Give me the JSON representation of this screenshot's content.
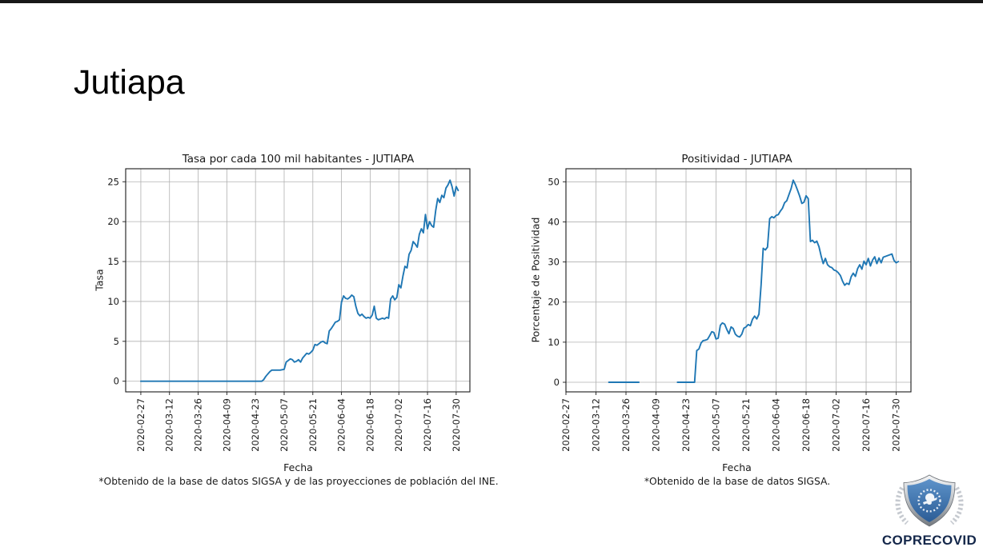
{
  "slide": {
    "title": "Jutiapa"
  },
  "top_bar": {
    "color": "#181818"
  },
  "logo": {
    "text": "COPRECOVID",
    "text_color": "#14274a",
    "shield_blue_top": "#5d92c9",
    "shield_blue_bottom": "#2c5d96",
    "shield_silver": "#c3c7cb",
    "emblem_color": "#eef3f8"
  },
  "chart_data": [
    {
      "type": "line",
      "title": "Tasa por cada 100 mil habitantes - JUTIAPA",
      "xlabel": "Fecha",
      "ylabel": "Tasa",
      "footnote": "*Obtenido de la base de datos SIGSA y de las proyecciones de población del INE.",
      "line_color": "#1f77b4",
      "grid": true,
      "legend": "none",
      "x_ticks": [
        "2020-02-27",
        "2020-03-12",
        "2020-03-26",
        "2020-04-09",
        "2020-04-23",
        "2020-05-07",
        "2020-05-21",
        "2020-06-04",
        "2020-06-18",
        "2020-07-02",
        "2020-07-16",
        "2020-07-30"
      ],
      "y_ticks": [
        0,
        5,
        10,
        15,
        20,
        25
      ],
      "xlim_days": [
        -7.4,
        160.7
      ],
      "ylim": [
        -1.33,
        26.63
      ],
      "series": [
        {
          "name": "Tasa",
          "segments": [
            [
              [
                "2020-02-27",
                0
              ],
              [
                "2020-03-05",
                0
              ],
              [
                "2020-03-12",
                0
              ],
              [
                "2020-03-19",
                0
              ],
              [
                "2020-03-26",
                0
              ],
              [
                "2020-04-02",
                0
              ],
              [
                "2020-04-09",
                0
              ],
              [
                "2020-04-16",
                0
              ],
              [
                "2020-04-23",
                0
              ],
              [
                "2020-04-26",
                0
              ],
              [
                "2020-04-27",
                0.2
              ],
              [
                "2020-04-28",
                0.6
              ],
              [
                "2020-04-29",
                0.9
              ],
              [
                "2020-04-30",
                1.2
              ],
              [
                "2020-05-01",
                1.4
              ],
              [
                "2020-05-03",
                1.4
              ],
              [
                "2020-05-05",
                1.4
              ],
              [
                "2020-05-07",
                1.5
              ],
              [
                "2020-05-08",
                2.4
              ],
              [
                "2020-05-09",
                2.6
              ],
              [
                "2020-05-10",
                2.8
              ],
              [
                "2020-05-11",
                2.7
              ],
              [
                "2020-05-12",
                2.4
              ],
              [
                "2020-05-13",
                2.5
              ],
              [
                "2020-05-14",
                2.7
              ],
              [
                "2020-05-15",
                2.4
              ],
              [
                "2020-05-16",
                2.9
              ],
              [
                "2020-05-17",
                3.2
              ],
              [
                "2020-05-18",
                3.5
              ],
              [
                "2020-05-19",
                3.4
              ],
              [
                "2020-05-20",
                3.6
              ],
              [
                "2020-05-21",
                3.9
              ],
              [
                "2020-05-22",
                4.6
              ],
              [
                "2020-05-23",
                4.5
              ],
              [
                "2020-05-24",
                4.7
              ],
              [
                "2020-05-25",
                4.9
              ],
              [
                "2020-05-26",
                5.0
              ],
              [
                "2020-05-27",
                4.8
              ],
              [
                "2020-05-28",
                4.7
              ],
              [
                "2020-05-29",
                6.3
              ],
              [
                "2020-05-30",
                6.6
              ],
              [
                "2020-05-31",
                7.0
              ],
              [
                "2020-06-01",
                7.4
              ],
              [
                "2020-06-02",
                7.5
              ],
              [
                "2020-06-03",
                7.7
              ],
              [
                "2020-06-04",
                9.9
              ],
              [
                "2020-06-05",
                10.7
              ],
              [
                "2020-06-06",
                10.4
              ],
              [
                "2020-06-07",
                10.3
              ],
              [
                "2020-06-08",
                10.5
              ],
              [
                "2020-06-09",
                10.8
              ],
              [
                "2020-06-10",
                10.6
              ],
              [
                "2020-06-11",
                9.4
              ],
              [
                "2020-06-12",
                8.5
              ],
              [
                "2020-06-13",
                8.2
              ],
              [
                "2020-06-14",
                8.4
              ],
              [
                "2020-06-15",
                8.1
              ],
              [
                "2020-06-16",
                7.9
              ],
              [
                "2020-06-17",
                8.0
              ],
              [
                "2020-06-18",
                7.9
              ],
              [
                "2020-06-19",
                8.3
              ],
              [
                "2020-06-20",
                9.4
              ],
              [
                "2020-06-21",
                7.9
              ],
              [
                "2020-06-22",
                7.7
              ],
              [
                "2020-06-23",
                7.8
              ],
              [
                "2020-06-24",
                7.9
              ],
              [
                "2020-06-25",
                7.8
              ],
              [
                "2020-06-26",
                8.0
              ],
              [
                "2020-06-27",
                7.9
              ],
              [
                "2020-06-28",
                10.3
              ],
              [
                "2020-06-29",
                10.7
              ],
              [
                "2020-06-30",
                10.2
              ],
              [
                "2020-07-01",
                10.5
              ],
              [
                "2020-07-02",
                12.1
              ],
              [
                "2020-07-03",
                11.7
              ],
              [
                "2020-07-04",
                13.2
              ],
              [
                "2020-07-05",
                14.4
              ],
              [
                "2020-07-06",
                14.2
              ],
              [
                "2020-07-07",
                15.9
              ],
              [
                "2020-07-08",
                16.4
              ],
              [
                "2020-07-09",
                17.5
              ],
              [
                "2020-07-10",
                17.2
              ],
              [
                "2020-07-11",
                16.8
              ],
              [
                "2020-07-12",
                18.4
              ],
              [
                "2020-07-13",
                19.1
              ],
              [
                "2020-07-14",
                18.6
              ],
              [
                "2020-07-15",
                20.9
              ],
              [
                "2020-07-16",
                19.1
              ],
              [
                "2020-07-17",
                20.0
              ],
              [
                "2020-07-18",
                19.5
              ],
              [
                "2020-07-19",
                19.3
              ],
              [
                "2020-07-20",
                21.4
              ],
              [
                "2020-07-21",
                22.9
              ],
              [
                "2020-07-22",
                22.4
              ],
              [
                "2020-07-23",
                23.3
              ],
              [
                "2020-07-24",
                23.0
              ],
              [
                "2020-07-25",
                24.2
              ],
              [
                "2020-07-26",
                24.6
              ],
              [
                "2020-07-27",
                25.2
              ],
              [
                "2020-07-28",
                24.4
              ],
              [
                "2020-07-29",
                23.2
              ],
              [
                "2020-07-30",
                24.4
              ],
              [
                "2020-07-31",
                23.9
              ]
            ]
          ]
        }
      ]
    },
    {
      "type": "line",
      "title": "Positividad - JUTIAPA",
      "xlabel": "Fecha",
      "ylabel": "Porcentaje de Positividad",
      "footnote": "*Obtenido de la base de datos SIGSA.",
      "line_color": "#1f77b4",
      "grid": true,
      "legend": "none",
      "x_ticks": [
        "2020-02-27",
        "2020-03-12",
        "2020-03-26",
        "2020-04-09",
        "2020-04-23",
        "2020-05-07",
        "2020-05-21",
        "2020-06-04",
        "2020-06-18",
        "2020-07-02",
        "2020-07-16",
        "2020-07-30"
      ],
      "y_ticks": [
        0,
        10,
        20,
        30,
        40,
        50
      ],
      "xlim_days": [
        0,
        160.9
      ],
      "ylim": [
        -2.39,
        53.25
      ],
      "series": [
        {
          "name": "Porcentaje de Positividad",
          "segments": [
            [
              [
                "2020-03-18",
                0
              ],
              [
                "2020-03-22",
                0
              ],
              [
                "2020-03-26",
                0
              ],
              [
                "2020-03-30",
                0
              ],
              [
                "2020-04-01",
                0
              ]
            ],
            [
              [
                "2020-04-19",
                0
              ],
              [
                "2020-04-22",
                0
              ],
              [
                "2020-04-25",
                0
              ],
              [
                "2020-04-27",
                0
              ],
              [
                "2020-04-28",
                7.9
              ],
              [
                "2020-04-29",
                8.3
              ],
              [
                "2020-04-30",
                9.8
              ],
              [
                "2020-05-01",
                10.4
              ],
              [
                "2020-05-02",
                10.5
              ],
              [
                "2020-05-03",
                10.7
              ],
              [
                "2020-05-04",
                11.6
              ],
              [
                "2020-05-05",
                12.6
              ],
              [
                "2020-05-06",
                12.4
              ],
              [
                "2020-05-07",
                10.8
              ],
              [
                "2020-05-08",
                11.0
              ],
              [
                "2020-05-09",
                14.2
              ],
              [
                "2020-05-10",
                14.8
              ],
              [
                "2020-05-11",
                14.5
              ],
              [
                "2020-05-12",
                13.2
              ],
              [
                "2020-05-13",
                12.1
              ],
              [
                "2020-05-14",
                13.8
              ],
              [
                "2020-05-15",
                13.4
              ],
              [
                "2020-05-16",
                12.0
              ],
              [
                "2020-05-17",
                11.5
              ],
              [
                "2020-05-18",
                11.3
              ],
              [
                "2020-05-19",
                12.0
              ],
              [
                "2020-05-20",
                13.5
              ],
              [
                "2020-05-21",
                13.8
              ],
              [
                "2020-05-22",
                14.4
              ],
              [
                "2020-05-23",
                14.1
              ],
              [
                "2020-05-24",
                15.7
              ],
              [
                "2020-05-25",
                16.5
              ],
              [
                "2020-05-26",
                15.8
              ],
              [
                "2020-05-27",
                17.0
              ],
              [
                "2020-05-28",
                24.3
              ],
              [
                "2020-05-29",
                33.4
              ],
              [
                "2020-05-30",
                33.0
              ],
              [
                "2020-05-31",
                33.7
              ],
              [
                "2020-06-01",
                40.8
              ],
              [
                "2020-06-02",
                41.3
              ],
              [
                "2020-06-03",
                41.0
              ],
              [
                "2020-06-04",
                41.6
              ],
              [
                "2020-06-05",
                41.8
              ],
              [
                "2020-06-06",
                42.7
              ],
              [
                "2020-06-07",
                43.4
              ],
              [
                "2020-06-08",
                44.8
              ],
              [
                "2020-06-09",
                45.3
              ],
              [
                "2020-06-10",
                46.8
              ],
              [
                "2020-06-11",
                48.3
              ],
              [
                "2020-06-12",
                50.4
              ],
              [
                "2020-06-13",
                49.3
              ],
              [
                "2020-06-14",
                47.9
              ],
              [
                "2020-06-15",
                46.4
              ],
              [
                "2020-06-16",
                44.6
              ],
              [
                "2020-06-17",
                44.9
              ],
              [
                "2020-06-18",
                46.5
              ],
              [
                "2020-06-19",
                45.8
              ],
              [
                "2020-06-20",
                35.1
              ],
              [
                "2020-06-21",
                35.4
              ],
              [
                "2020-06-22",
                34.8
              ],
              [
                "2020-06-23",
                35.2
              ],
              [
                "2020-06-24",
                33.8
              ],
              [
                "2020-06-25",
                31.5
              ],
              [
                "2020-06-26",
                29.6
              ],
              [
                "2020-06-27",
                30.9
              ],
              [
                "2020-06-28",
                29.3
              ],
              [
                "2020-06-29",
                28.8
              ],
              [
                "2020-06-30",
                28.6
              ],
              [
                "2020-07-01",
                28.0
              ],
              [
                "2020-07-02",
                27.8
              ],
              [
                "2020-07-03",
                27.3
              ],
              [
                "2020-07-04",
                26.6
              ],
              [
                "2020-07-05",
                25.2
              ],
              [
                "2020-07-06",
                24.2
              ],
              [
                "2020-07-07",
                24.7
              ],
              [
                "2020-07-08",
                24.4
              ],
              [
                "2020-07-09",
                26.3
              ],
              [
                "2020-07-10",
                27.2
              ],
              [
                "2020-07-11",
                26.4
              ],
              [
                "2020-07-12",
                28.3
              ],
              [
                "2020-07-13",
                29.3
              ],
              [
                "2020-07-14",
                28.2
              ],
              [
                "2020-07-15",
                30.2
              ],
              [
                "2020-07-16",
                29.3
              ],
              [
                "2020-07-17",
                30.9
              ],
              [
                "2020-07-18",
                29.0
              ],
              [
                "2020-07-19",
                30.5
              ],
              [
                "2020-07-20",
                31.3
              ],
              [
                "2020-07-21",
                29.6
              ],
              [
                "2020-07-22",
                31.0
              ],
              [
                "2020-07-23",
                29.8
              ],
              [
                "2020-07-24",
                31.2
              ],
              [
                "2020-07-25",
                31.4
              ],
              [
                "2020-07-26",
                31.6
              ],
              [
                "2020-07-27",
                31.8
              ],
              [
                "2020-07-28",
                32.0
              ],
              [
                "2020-07-29",
                30.4
              ],
              [
                "2020-07-30",
                29.8
              ],
              [
                "2020-07-31",
                30.1
              ]
            ]
          ]
        }
      ]
    }
  ]
}
